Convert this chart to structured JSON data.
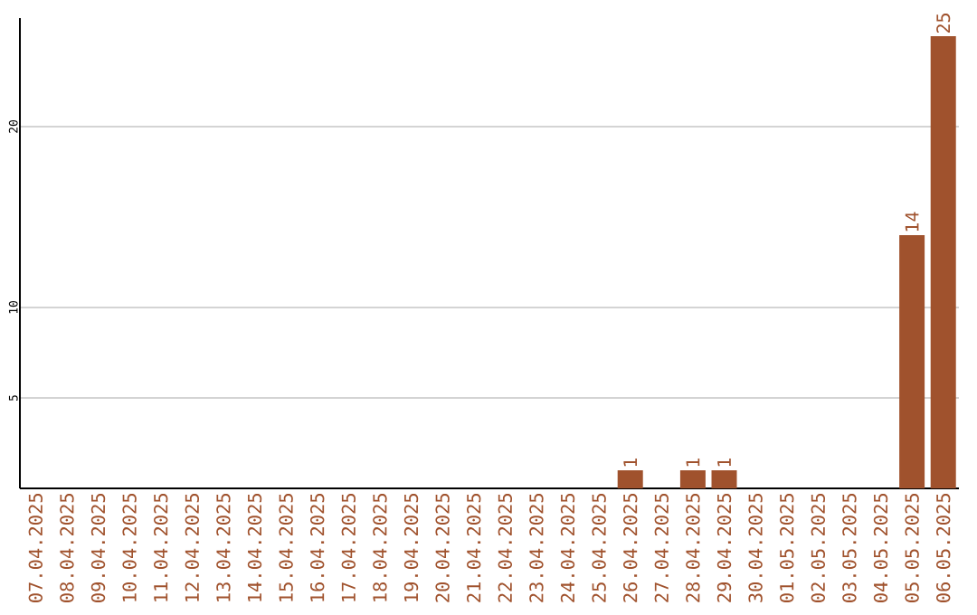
{
  "chart_data": {
    "type": "bar",
    "categories": [
      "07.04.2025",
      "08.04.2025",
      "09.04.2025",
      "10.04.2025",
      "11.04.2025",
      "12.04.2025",
      "13.04.2025",
      "14.04.2025",
      "15.04.2025",
      "16.04.2025",
      "17.04.2025",
      "18.04.2025",
      "19.04.2025",
      "20.04.2025",
      "21.04.2025",
      "22.04.2025",
      "23.04.2025",
      "24.04.2025",
      "25.04.2025",
      "26.04.2025",
      "27.04.2025",
      "28.04.2025",
      "29.04.2025",
      "30.04.2025",
      "01.05.2025",
      "02.05.2025",
      "03.05.2025",
      "04.05.2025",
      "05.05.2025",
      "06.05.2025"
    ],
    "values": [
      0,
      0,
      0,
      0,
      0,
      0,
      0,
      0,
      0,
      0,
      0,
      0,
      0,
      0,
      0,
      0,
      0,
      0,
      0,
      1,
      0,
      1,
      1,
      0,
      0,
      0,
      0,
      0,
      14,
      25
    ],
    "value_labels": [
      null,
      null,
      null,
      null,
      null,
      null,
      null,
      null,
      null,
      null,
      null,
      null,
      null,
      null,
      null,
      null,
      null,
      null,
      null,
      "1",
      null,
      "1",
      "1",
      null,
      null,
      null,
      null,
      null,
      "14",
      "25"
    ],
    "color": "#a0522d",
    "ylim": [
      0,
      26
    ],
    "yticks": [
      5,
      10,
      20
    ],
    "grid": "y"
  }
}
